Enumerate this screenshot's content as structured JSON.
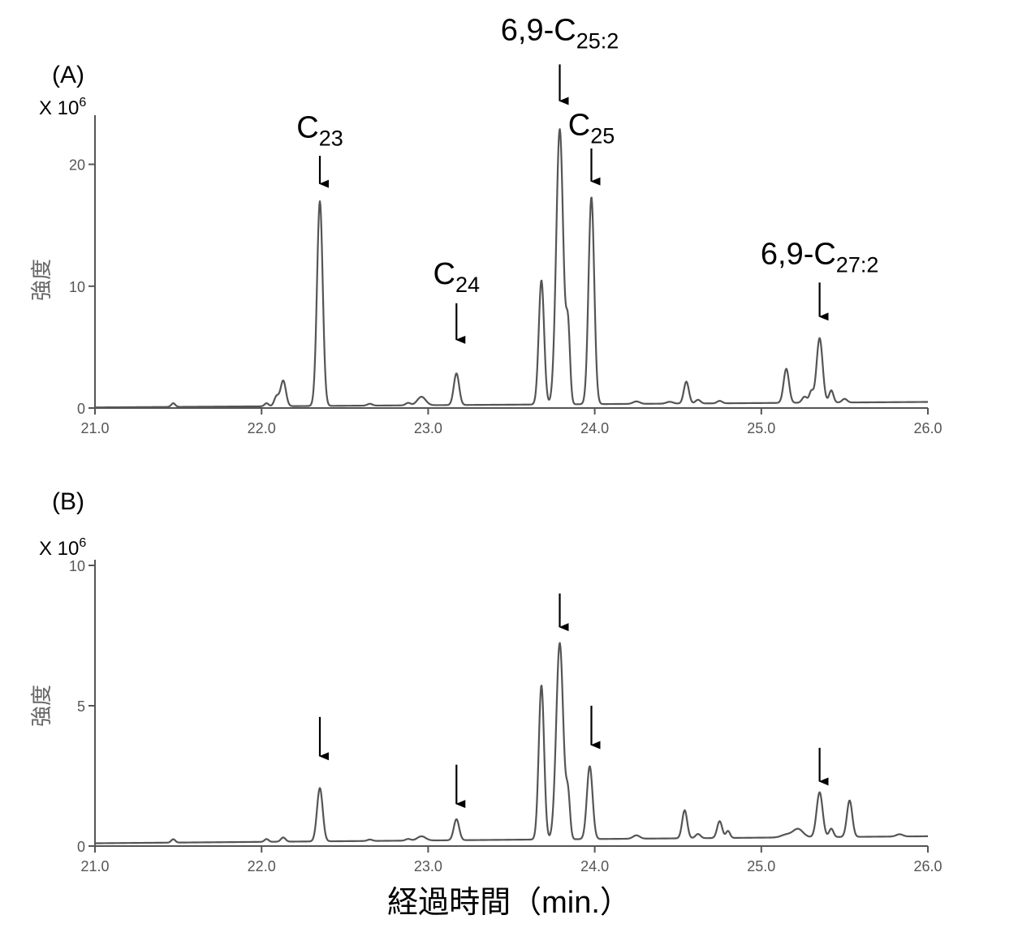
{
  "xlabel": "経過時間（min.）",
  "colors": {
    "trace": "#555555",
    "axis": "#555555",
    "label": "#000000"
  },
  "chart_data": [
    {
      "type": "line",
      "panel_label": "(A)",
      "multiplier_label": "X 10",
      "multiplier_exp": "6",
      "ylabel": "強度",
      "xlim": [
        21.0,
        26.0
      ],
      "ylim": [
        0,
        23.5
      ],
      "xticks": [
        21.0,
        22.0,
        23.0,
        24.0,
        25.0,
        26.0
      ],
      "xtick_labels": [
        "21.0",
        "22.0",
        "23.0",
        "24.0",
        "25.0",
        "26.0"
      ],
      "yticks": [
        0,
        10,
        20
      ],
      "ytick_labels": [
        "0",
        "10",
        "20"
      ],
      "baseline": [
        [
          21.0,
          0.05
        ],
        [
          26.0,
          0.5
        ]
      ],
      "peaks": [
        [
          21.47,
          0.3,
          0.012
        ],
        [
          22.03,
          0.25,
          0.012
        ],
        [
          22.09,
          0.8,
          0.014
        ],
        [
          22.13,
          2.1,
          0.016
        ],
        [
          22.35,
          16.8,
          0.017
        ],
        [
          22.65,
          0.15,
          0.015
        ],
        [
          22.88,
          0.2,
          0.015
        ],
        [
          22.96,
          0.7,
          0.025
        ],
        [
          23.17,
          2.6,
          0.016
        ],
        [
          23.68,
          10.2,
          0.016
        ],
        [
          23.79,
          22.6,
          0.021
        ],
        [
          23.84,
          6.0,
          0.012
        ],
        [
          23.98,
          17.0,
          0.017
        ],
        [
          24.25,
          0.2,
          0.02
        ],
        [
          24.45,
          0.15,
          0.02
        ],
        [
          24.55,
          1.8,
          0.015
        ],
        [
          24.62,
          0.3,
          0.015
        ],
        [
          24.75,
          0.2,
          0.015
        ],
        [
          25.15,
          2.8,
          0.016
        ],
        [
          25.26,
          0.5,
          0.015
        ],
        [
          25.3,
          0.9,
          0.012
        ],
        [
          25.35,
          5.3,
          0.018
        ],
        [
          25.42,
          1.0,
          0.013
        ],
        [
          25.5,
          0.3,
          0.015
        ]
      ],
      "annotations": [
        {
          "base": "C",
          "sub": "23",
          "x": 22.35,
          "arrow_top": 20.7,
          "arrow_bottom": 18.4,
          "label_y": 22.2
        },
        {
          "base": "C",
          "sub": "24",
          "x": 23.17,
          "arrow_top": 8.6,
          "arrow_bottom": 5.6,
          "label_y": 10.2
        },
        {
          "base": "6,9-C",
          "sub": "25:2",
          "x": 23.79,
          "arrow_top": 28.2,
          "arrow_bottom": 25.2,
          "label_y": 30.2
        },
        {
          "base": "C",
          "sub": "25",
          "x": 23.98,
          "arrow_top": 21.3,
          "arrow_bottom": 18.6,
          "label_y": 22.4
        },
        {
          "base": "6,9-C",
          "sub": "27:2",
          "x": 25.35,
          "arrow_top": 10.3,
          "arrow_bottom": 7.5,
          "label_y": 11.8
        }
      ]
    },
    {
      "type": "line",
      "panel_label": "(B)",
      "multiplier_label": "X 10",
      "multiplier_exp": "6",
      "ylabel": "強度",
      "xlim": [
        21.0,
        26.0
      ],
      "ylim": [
        0,
        10.0
      ],
      "xticks": [
        21.0,
        22.0,
        23.0,
        24.0,
        25.0,
        26.0
      ],
      "xtick_labels": [
        "21.0",
        "22.0",
        "23.0",
        "24.0",
        "25.0",
        "26.0"
      ],
      "yticks": [
        0,
        5,
        10
      ],
      "ytick_labels": [
        "0",
        "5",
        "10"
      ],
      "baseline": [
        [
          21.0,
          0.1
        ],
        [
          26.0,
          0.35
        ]
      ],
      "peaks": [
        [
          21.47,
          0.12,
          0.012
        ],
        [
          22.03,
          0.1,
          0.012
        ],
        [
          22.13,
          0.15,
          0.014
        ],
        [
          22.35,
          1.9,
          0.017
        ],
        [
          22.65,
          0.05,
          0.015
        ],
        [
          22.88,
          0.06,
          0.015
        ],
        [
          22.96,
          0.15,
          0.025
        ],
        [
          23.17,
          0.75,
          0.016
        ],
        [
          23.68,
          5.5,
          0.016
        ],
        [
          23.79,
          7.0,
          0.021
        ],
        [
          23.84,
          1.5,
          0.012
        ],
        [
          23.97,
          2.6,
          0.017
        ],
        [
          24.25,
          0.12,
          0.02
        ],
        [
          24.54,
          1.0,
          0.015
        ],
        [
          24.62,
          0.15,
          0.015
        ],
        [
          24.75,
          0.6,
          0.015
        ],
        [
          24.8,
          0.25,
          0.012
        ],
        [
          25.15,
          0.1,
          0.03
        ],
        [
          25.22,
          0.3,
          0.03
        ],
        [
          25.35,
          1.6,
          0.018
        ],
        [
          25.42,
          0.3,
          0.013
        ],
        [
          25.53,
          1.3,
          0.016
        ],
        [
          25.83,
          0.08,
          0.02
        ]
      ],
      "annotations": [
        {
          "base": "",
          "sub": "",
          "x": 22.35,
          "arrow_top": 4.6,
          "arrow_bottom": 3.2
        },
        {
          "base": "",
          "sub": "",
          "x": 23.17,
          "arrow_top": 2.9,
          "arrow_bottom": 1.5
        },
        {
          "base": "",
          "sub": "",
          "x": 23.79,
          "arrow_top": 9.0,
          "arrow_bottom": 7.8
        },
        {
          "base": "",
          "sub": "",
          "x": 23.98,
          "arrow_top": 5.0,
          "arrow_bottom": 3.6
        },
        {
          "base": "",
          "sub": "",
          "x": 25.35,
          "arrow_top": 3.5,
          "arrow_bottom": 2.3
        }
      ]
    }
  ]
}
